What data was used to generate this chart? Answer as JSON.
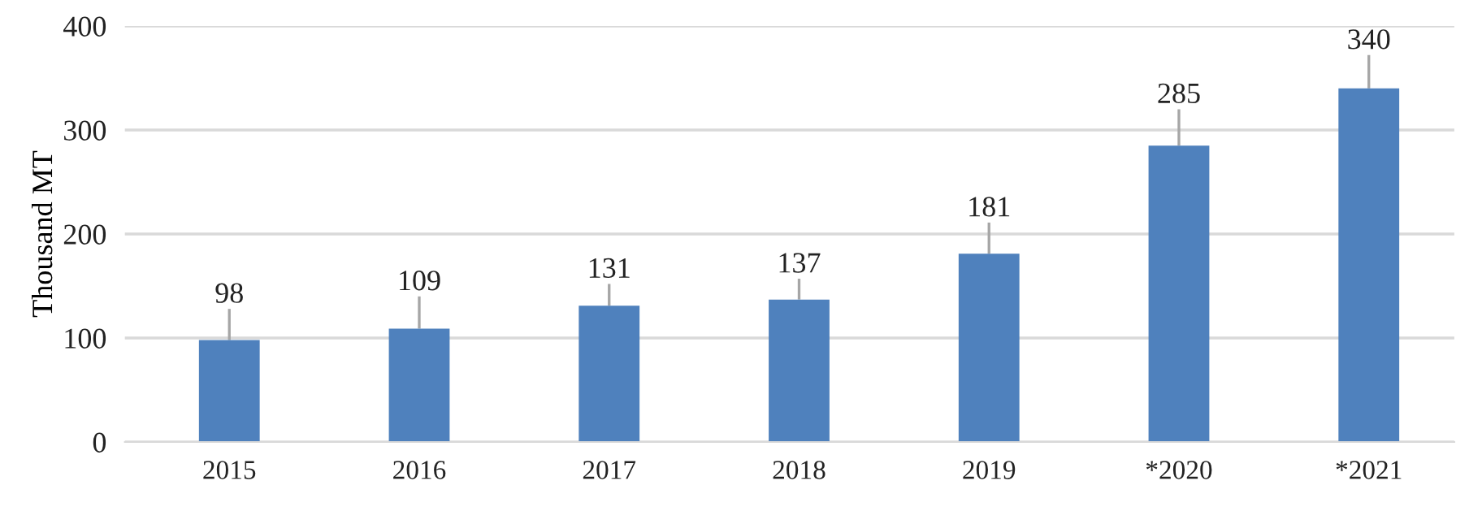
{
  "chart_data": {
    "type": "bar",
    "ylabel": "Thousand MT",
    "categories": [
      "2015",
      "2016",
      "2017",
      "2018",
      "2019",
      "*2020",
      "*2021"
    ],
    "values": [
      98,
      109,
      131,
      137,
      181,
      285,
      340
    ],
    "errors": [
      [
        98,
        128
      ],
      [
        109,
        140
      ],
      [
        131,
        152
      ],
      [
        137,
        157
      ],
      [
        181,
        211
      ],
      [
        285,
        320
      ],
      [
        340,
        372
      ]
    ],
    "color": "#4f81bd",
    "data_labels": true,
    "ylim": [
      0,
      400
    ],
    "yticks": [
      0,
      100,
      200,
      300,
      400
    ],
    "grid": "y"
  }
}
